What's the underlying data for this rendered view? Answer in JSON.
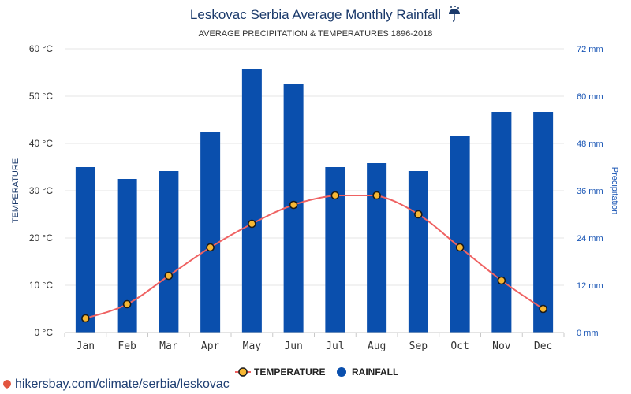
{
  "header": {
    "title": "Leskovac Serbia Average Monthly Rainfall",
    "title_icon": "umbrella-rain-icon",
    "subtitle": "AVERAGE PRECIPITATION & TEMPERATURES 1896-2018"
  },
  "legend": {
    "temperature_label": "TEMPERATURE",
    "rainfall_label": "RAINFALL"
  },
  "watermark": {
    "text": "hikersbay.com/climate/serbia/leskovac",
    "icon": "location-pin-icon"
  },
  "colors": {
    "bar": "#0a4fad",
    "line": "#ef6262",
    "marker_fill": "#f7b733",
    "marker_stroke": "#1a1a1a",
    "grid": "#e6e6e6",
    "axis_right": "#1a56b5"
  },
  "chart_data": {
    "type": "bar",
    "title": "Leskovac Serbia Average Monthly Rainfall",
    "subtitle": "AVERAGE PRECIPITATION & TEMPERATURES 1896-2018",
    "categories": [
      "Jan",
      "Feb",
      "Mar",
      "Apr",
      "May",
      "Jun",
      "Jul",
      "Aug",
      "Sep",
      "Oct",
      "Nov",
      "Dec"
    ],
    "series": [
      {
        "name": "RAINFALL",
        "type": "bar",
        "axis": "right",
        "unit": "mm",
        "values": [
          42,
          39,
          41,
          51,
          67,
          63,
          42,
          43,
          41,
          50,
          56,
          56
        ]
      },
      {
        "name": "TEMPERATURE",
        "type": "line",
        "axis": "left",
        "unit": "°C",
        "values": [
          3,
          6,
          12,
          18,
          23,
          27,
          29,
          29,
          25,
          18,
          11,
          5
        ]
      }
    ],
    "ylabel_left": "TEMPERATURE",
    "ylabel_right": "Precipitation",
    "ylim_left": [
      0,
      60
    ],
    "ylim_right": [
      0,
      72
    ],
    "yticks_left": [
      "0 °C",
      "10 °C",
      "20 °C",
      "30 °C",
      "40 °C",
      "50 °C",
      "60 °C"
    ],
    "yticks_right": [
      "0 mm",
      "12 mm",
      "24 mm",
      "36 mm",
      "48 mm",
      "60 mm",
      "72 mm"
    ],
    "grid": true,
    "legend_position": "bottom-center"
  }
}
